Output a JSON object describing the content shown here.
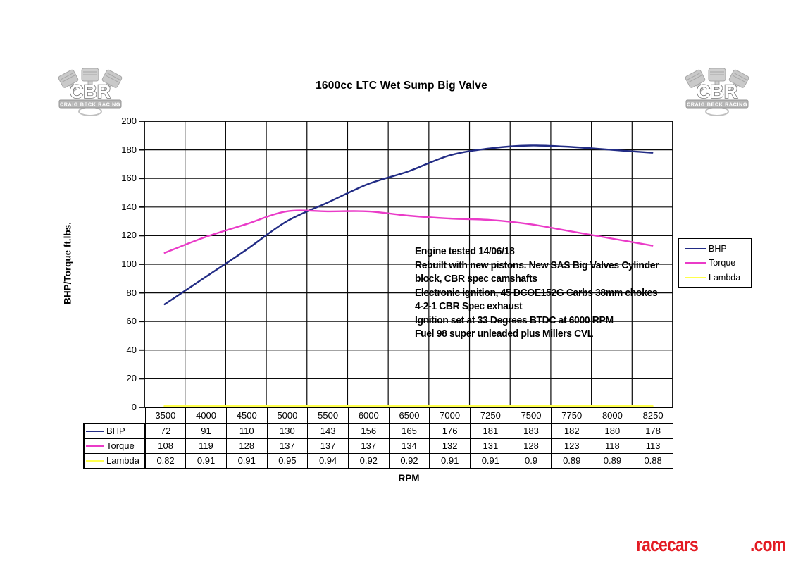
{
  "title": "1600cc LTC Wet Sump Big Valve",
  "logo": {
    "text": "CBR",
    "subtext": "CRAIG BECK RACING"
  },
  "y_axis": {
    "label": "BHP/Torque ft.lbs.",
    "ticks": [
      0,
      20,
      40,
      60,
      80,
      100,
      120,
      140,
      160,
      180,
      200
    ]
  },
  "x_axis": {
    "label": "RPM"
  },
  "chart_data": {
    "type": "line",
    "title": "1600cc LTC Wet Sump Big Valve",
    "xlabel": "RPM",
    "ylabel": "BHP/Torque ft.lbs.",
    "ylim": [
      0,
      200
    ],
    "grid": true,
    "legend_position": "right",
    "categories": [
      3500,
      4000,
      4500,
      5000,
      5500,
      6000,
      6500,
      7000,
      7250,
      7500,
      7750,
      8000,
      8250
    ],
    "series": [
      {
        "name": "BHP",
        "color": "#222c85",
        "values": [
          72,
          91,
          110,
          130,
          143,
          156,
          165,
          176,
          181,
          183,
          182,
          180,
          178
        ]
      },
      {
        "name": "Torque",
        "color": "#ea3bc8",
        "values": [
          108,
          119,
          128,
          137,
          137,
          137,
          134,
          132,
          131,
          128,
          123,
          118,
          113
        ]
      },
      {
        "name": "Lambda",
        "color": "#ffff4d",
        "values": [
          0.82,
          0.91,
          0.91,
          0.95,
          0.94,
          0.92,
          0.92,
          0.91,
          0.91,
          0.9,
          0.89,
          0.89,
          0.88
        ]
      }
    ]
  },
  "annotation": {
    "lines": [
      "Engine tested 14/06/18",
      "Rebuilt with new pistons. New SAS Big Valves  Cylinder",
      "block, CBR spec camshafts",
      "Electronic ignition,  45 DCOE152G Carbs 38mm chokes",
      "4-2-1 CBR Spec exhaust",
      "Ignition set at 33 Degrees BTDC at 6000 RPM",
      "Fuel 98 super unleaded plus Millers CVL"
    ]
  },
  "footer": {
    "brand_left": "racecars",
    "brand_right": ".com",
    "brand_color": "#e31b23"
  }
}
